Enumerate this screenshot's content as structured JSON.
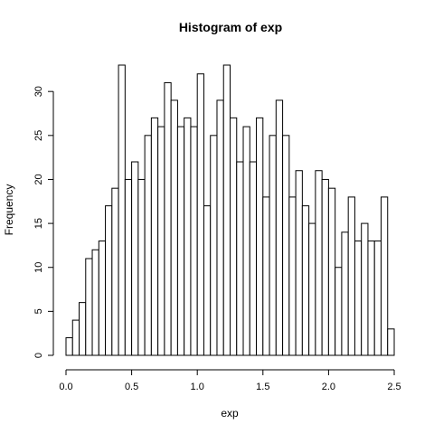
{
  "chart_data": {
    "type": "bar",
    "title": "Histogram of exp",
    "xlabel": "exp",
    "ylabel": "Frequency",
    "xlim": [
      0,
      2.5
    ],
    "ylim": [
      0,
      33
    ],
    "bin_width": 0.05,
    "bin_start": 0.0,
    "values": [
      2,
      4,
      6,
      11,
      12,
      13,
      17,
      19,
      33,
      20,
      22,
      20,
      25,
      27,
      26,
      31,
      29,
      26,
      27,
      26,
      32,
      17,
      25,
      29,
      33,
      27,
      22,
      26,
      22,
      27,
      18,
      25,
      29,
      25,
      18,
      21,
      17,
      15,
      21,
      20,
      19,
      10,
      14,
      18,
      13,
      15,
      13,
      13,
      18,
      3
    ],
    "x_ticks": [
      {
        "value": 0.0,
        "label": "0.0"
      },
      {
        "value": 0.5,
        "label": "0.5"
      },
      {
        "value": 1.0,
        "label": "1.0"
      },
      {
        "value": 1.5,
        "label": "1.5"
      },
      {
        "value": 2.0,
        "label": "2.0"
      },
      {
        "value": 2.5,
        "label": "2.5"
      }
    ],
    "y_ticks": [
      {
        "value": 0,
        "label": "0"
      },
      {
        "value": 5,
        "label": "5"
      },
      {
        "value": 10,
        "label": "10"
      },
      {
        "value": 15,
        "label": "15"
      },
      {
        "value": 20,
        "label": "20"
      },
      {
        "value": 25,
        "label": "25"
      },
      {
        "value": 30,
        "label": "30"
      }
    ],
    "grid": false,
    "bar_fill": "#ffffff",
    "bar_stroke": "#000000"
  }
}
